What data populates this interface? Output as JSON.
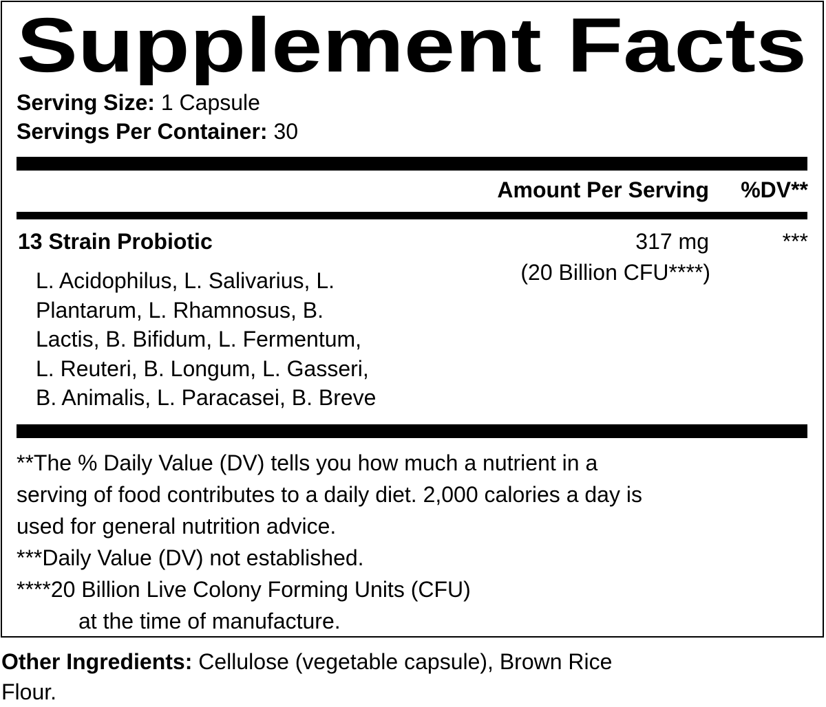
{
  "title": "Supplement Facts",
  "serving": {
    "size_label": "Serving Size:",
    "size_value": " 1 Capsule",
    "per_container_label": "Servings Per Container:",
    "per_container_value": " 30"
  },
  "header": {
    "amount": "Amount Per Serving",
    "dv": "%DV**"
  },
  "ingredient": {
    "name": "13 Strain Probiotic",
    "amount": "317 mg",
    "amount_note": "(20 Billion CFU****)",
    "dv": "***",
    "strain_lines": [
      "L. Acidophilus, L. Salivarius, L.",
      "Plantarum, L. Rhamnosus, B.",
      "Lactis, B. Bifidum, L. Fermentum,",
      "L. Reuteri, B. Longum, L. Gasseri,",
      "B. Animalis, L. Paracasei, B. Breve"
    ]
  },
  "footnotes": [
    "**The % Daily Value (DV) tells you how much a nutrient in a",
    "serving of food contributes to a daily diet. 2,000 calories a day is",
    "used for general nutrition advice.",
    "***Daily Value (DV) not established.",
    "****20 Billion Live Colony Forming Units (CFU)",
    "at the time of manufacture."
  ],
  "other": {
    "label": "Other Ingredients:",
    "value": " Cellulose (vegetable capsule), Brown Rice",
    "value_line2": "Flour."
  }
}
